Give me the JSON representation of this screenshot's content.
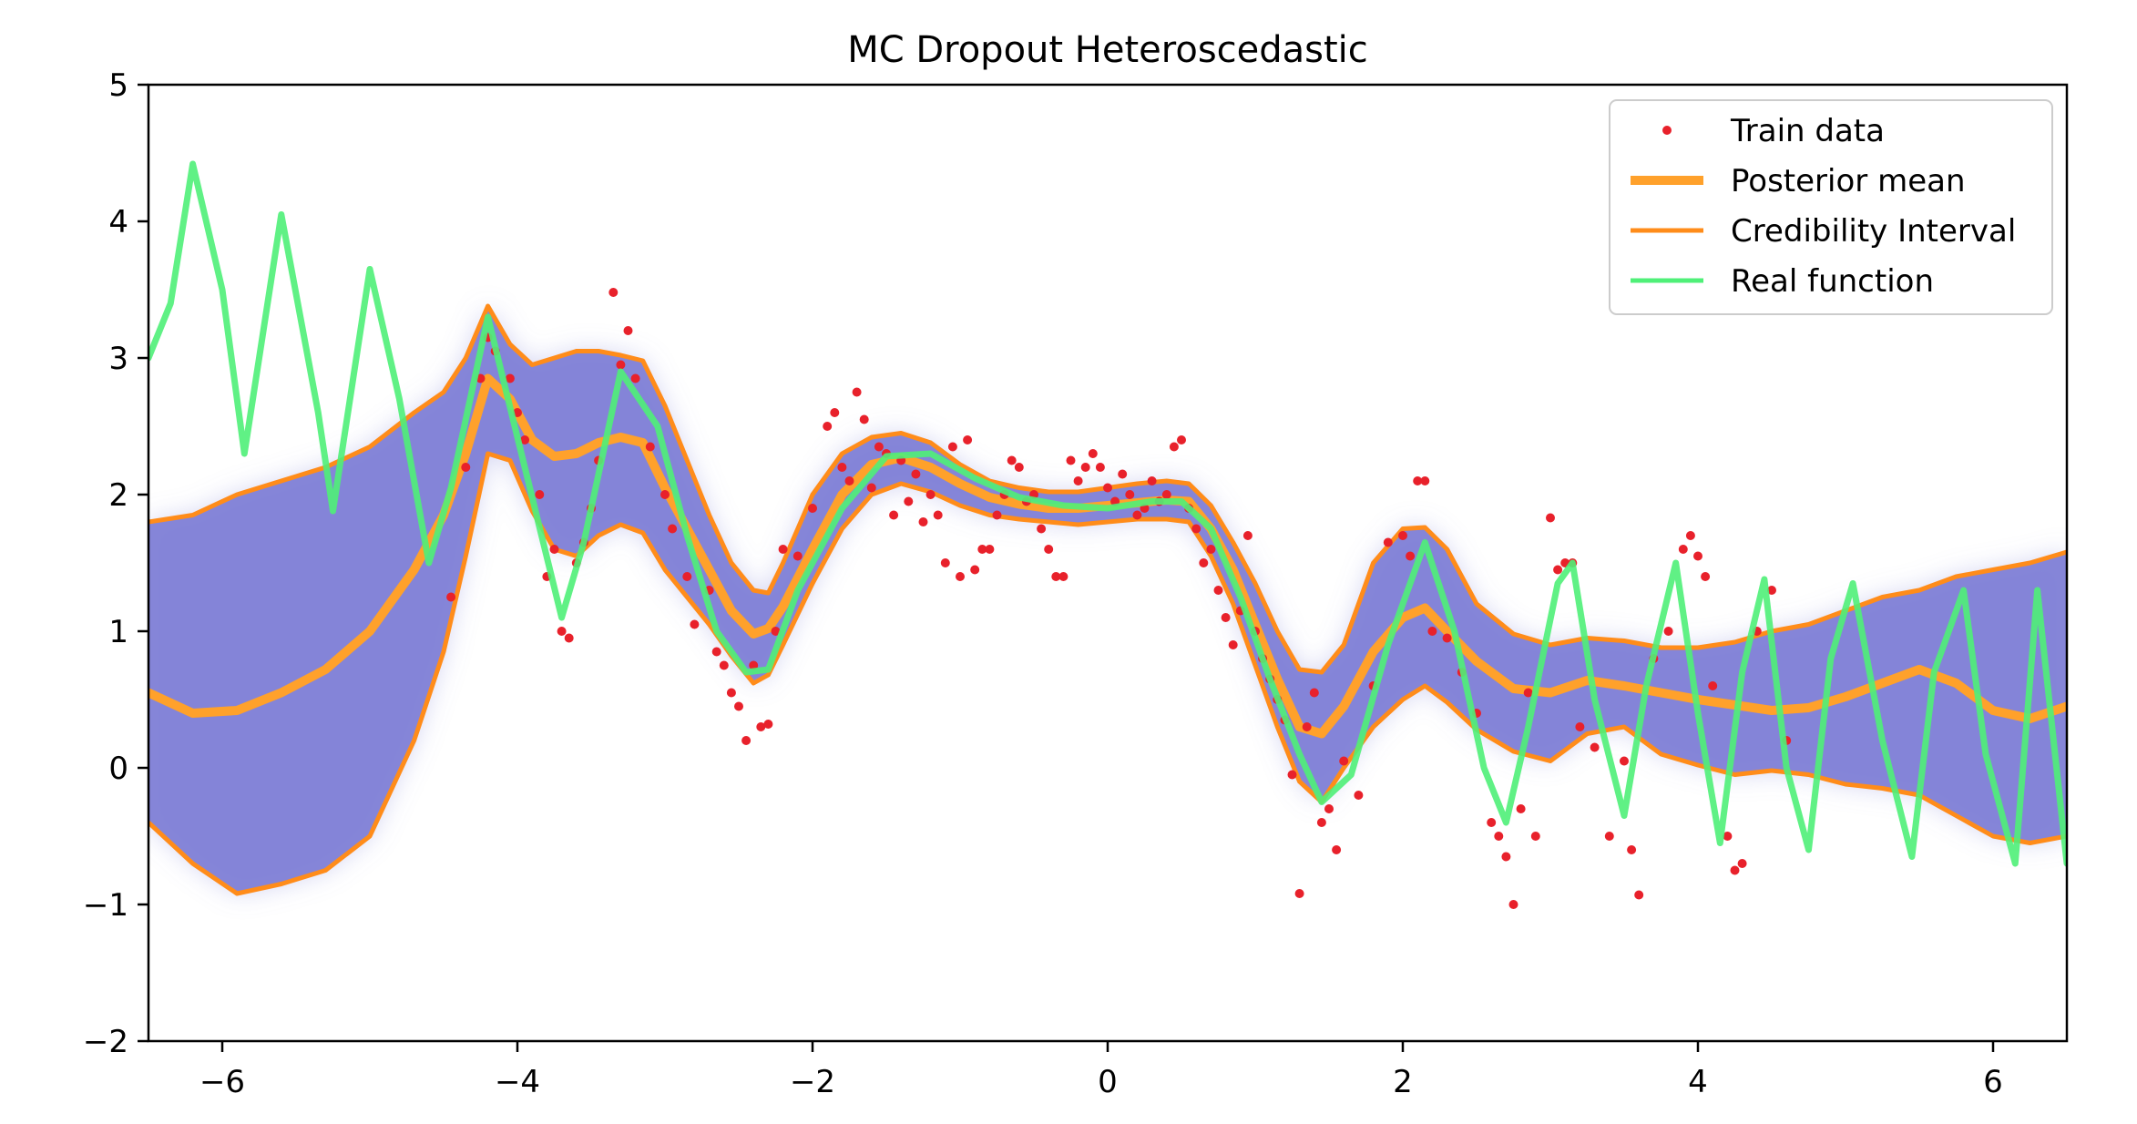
{
  "chart_data": {
    "type": "line",
    "title": "MC Dropout Heteroscedastic",
    "xlabel": "",
    "ylabel": "",
    "xlim": [
      -6.5,
      6.5
    ],
    "ylim": [
      -2,
      5
    ],
    "x_ticks": [
      -6,
      -4,
      -2,
      0,
      2,
      4,
      6
    ],
    "x_tick_labels": [
      "−6",
      "−4",
      "−2",
      "0",
      "2",
      "4",
      "6"
    ],
    "y_ticks": [
      -2,
      -1,
      0,
      1,
      2,
      3,
      4,
      5
    ],
    "y_tick_labels": [
      "−2",
      "−1",
      "0",
      "1",
      "2",
      "3",
      "4",
      "5"
    ],
    "grid": false,
    "legend_position": "top-right",
    "legend": [
      {
        "label": "Train data",
        "kind": "marker",
        "color": "#e8212b"
      },
      {
        "label": "Posterior mean",
        "kind": "line-thick",
        "color": "#ffa12b"
      },
      {
        "label": "Credibility Interval",
        "kind": "line",
        "color": "#ff8c1a"
      },
      {
        "label": "Real function",
        "kind": "line",
        "color": "#4ff078"
      }
    ],
    "colors": {
      "train": "#e8212b",
      "mean": "#ffa12b",
      "interval": "#ff8c1a",
      "real": "#4ff078",
      "band": "#7f80d6"
    },
    "series": [
      {
        "name": "Posterior mean",
        "x": [
          -6.5,
          -6.2,
          -5.9,
          -5.6,
          -5.3,
          -5.0,
          -4.7,
          -4.5,
          -4.35,
          -4.2,
          -4.05,
          -3.9,
          -3.75,
          -3.6,
          -3.45,
          -3.3,
          -3.15,
          -3.0,
          -2.85,
          -2.7,
          -2.55,
          -2.4,
          -2.3,
          -2.2,
          -2.0,
          -1.8,
          -1.6,
          -1.4,
          -1.2,
          -1.0,
          -0.8,
          -0.6,
          -0.4,
          -0.2,
          0.0,
          0.2,
          0.4,
          0.55,
          0.7,
          0.85,
          1.0,
          1.15,
          1.3,
          1.45,
          1.6,
          1.8,
          2.0,
          2.15,
          2.3,
          2.5,
          2.75,
          3.0,
          3.25,
          3.5,
          3.75,
          4.0,
          4.25,
          4.5,
          4.75,
          5.0,
          5.25,
          5.5,
          5.75,
          6.0,
          6.25,
          6.5
        ],
        "y": [
          0.55,
          0.4,
          0.42,
          0.55,
          0.72,
          1.0,
          1.45,
          1.85,
          2.3,
          2.85,
          2.7,
          2.4,
          2.28,
          2.3,
          2.38,
          2.42,
          2.38,
          2.05,
          1.75,
          1.45,
          1.15,
          0.98,
          1.02,
          1.18,
          1.6,
          2.0,
          2.22,
          2.27,
          2.2,
          2.08,
          1.98,
          1.93,
          1.9,
          1.9,
          1.92,
          1.94,
          1.96,
          1.95,
          1.75,
          1.45,
          1.05,
          0.65,
          0.3,
          0.25,
          0.45,
          0.85,
          1.1,
          1.17,
          1.0,
          0.78,
          0.58,
          0.55,
          0.64,
          0.6,
          0.55,
          0.5,
          0.46,
          0.42,
          0.44,
          0.52,
          0.62,
          0.72,
          0.62,
          0.42,
          0.36,
          0.45
        ]
      },
      {
        "name": "Credibility Interval",
        "x": [
          -6.5,
          -6.2,
          -5.9,
          -5.6,
          -5.3,
          -5.0,
          -4.7,
          -4.5,
          -4.35,
          -4.2,
          -4.05,
          -3.9,
          -3.75,
          -3.6,
          -3.45,
          -3.3,
          -3.15,
          -3.0,
          -2.85,
          -2.7,
          -2.55,
          -2.4,
          -2.3,
          -2.2,
          -2.0,
          -1.8,
          -1.6,
          -1.4,
          -1.2,
          -1.0,
          -0.8,
          -0.6,
          -0.4,
          -0.2,
          0.0,
          0.2,
          0.4,
          0.55,
          0.7,
          0.85,
          1.0,
          1.15,
          1.3,
          1.45,
          1.6,
          1.8,
          2.0,
          2.15,
          2.3,
          2.5,
          2.75,
          3.0,
          3.25,
          3.5,
          3.75,
          4.0,
          4.25,
          4.5,
          4.75,
          5.0,
          5.25,
          5.5,
          5.75,
          6.0,
          6.25,
          6.5
        ],
        "y": [
          1.8,
          1.85,
          2.0,
          2.1,
          2.2,
          2.35,
          2.6,
          2.75,
          3.0,
          3.38,
          3.1,
          2.95,
          3.0,
          3.05,
          3.05,
          3.02,
          2.98,
          2.65,
          2.25,
          1.85,
          1.5,
          1.3,
          1.28,
          1.5,
          2.0,
          2.3,
          2.42,
          2.45,
          2.38,
          2.22,
          2.1,
          2.05,
          2.02,
          2.02,
          2.05,
          2.08,
          2.1,
          2.08,
          1.92,
          1.65,
          1.35,
          1.0,
          0.72,
          0.7,
          0.9,
          1.5,
          1.75,
          1.76,
          1.6,
          1.2,
          0.98,
          0.9,
          0.95,
          0.93,
          0.88,
          0.88,
          0.92,
          1.0,
          1.05,
          1.15,
          1.25,
          1.3,
          1.4,
          1.45,
          1.5,
          1.58
        ]
      },
      {
        "name": "Credibility Interval",
        "x": [
          -6.5,
          -6.2,
          -5.9,
          -5.6,
          -5.3,
          -5.0,
          -4.7,
          -4.5,
          -4.35,
          -4.2,
          -4.05,
          -3.9,
          -3.75,
          -3.6,
          -3.45,
          -3.3,
          -3.15,
          -3.0,
          -2.85,
          -2.7,
          -2.55,
          -2.4,
          -2.3,
          -2.2,
          -2.0,
          -1.8,
          -1.6,
          -1.4,
          -1.2,
          -1.0,
          -0.8,
          -0.6,
          -0.4,
          -0.2,
          0.0,
          0.2,
          0.4,
          0.55,
          0.7,
          0.85,
          1.0,
          1.15,
          1.3,
          1.45,
          1.6,
          1.8,
          2.0,
          2.15,
          2.3,
          2.5,
          2.75,
          3.0,
          3.25,
          3.5,
          3.75,
          4.0,
          4.25,
          4.5,
          4.75,
          5.0,
          5.25,
          5.5,
          5.75,
          6.0,
          6.25,
          6.5
        ],
        "y": [
          -0.4,
          -0.7,
          -0.92,
          -0.85,
          -0.75,
          -0.5,
          0.2,
          0.85,
          1.55,
          2.3,
          2.25,
          1.88,
          1.6,
          1.55,
          1.7,
          1.78,
          1.72,
          1.45,
          1.25,
          1.05,
          0.82,
          0.62,
          0.68,
          0.9,
          1.35,
          1.75,
          2.0,
          2.08,
          2.02,
          1.92,
          1.85,
          1.82,
          1.8,
          1.78,
          1.8,
          1.82,
          1.82,
          1.8,
          1.55,
          1.2,
          0.75,
          0.3,
          -0.1,
          -0.25,
          0.0,
          0.3,
          0.5,
          0.6,
          0.48,
          0.28,
          0.12,
          0.05,
          0.25,
          0.3,
          0.1,
          0.02,
          -0.05,
          -0.02,
          -0.05,
          -0.12,
          -0.15,
          -0.2,
          -0.35,
          -0.5,
          -0.55,
          -0.5
        ]
      },
      {
        "name": "Real function",
        "x": [
          -6.5,
          -6.35,
          -6.2,
          -6.0,
          -5.85,
          -5.6,
          -5.35,
          -5.25,
          -5.0,
          -4.8,
          -4.6,
          -4.45,
          -4.2,
          -3.95,
          -3.7,
          -3.55,
          -3.3,
          -3.05,
          -2.85,
          -2.65,
          -2.45,
          -2.3,
          -2.1,
          -1.8,
          -1.5,
          -1.2,
          -0.9,
          -0.6,
          -0.3,
          0.0,
          0.3,
          0.5,
          0.7,
          0.9,
          1.1,
          1.3,
          1.45,
          1.65,
          1.9,
          2.15,
          2.35,
          2.55,
          2.7,
          2.85,
          3.05,
          3.15,
          3.3,
          3.5,
          3.65,
          3.85,
          4.0,
          4.15,
          4.3,
          4.45,
          4.6,
          4.75,
          4.9,
          5.05,
          5.25,
          5.45,
          5.6,
          5.8,
          5.95,
          6.15,
          6.3,
          6.5
        ],
        "y": [
          3.0,
          3.4,
          4.42,
          3.5,
          2.3,
          4.05,
          2.6,
          1.88,
          3.65,
          2.7,
          1.5,
          2.05,
          3.3,
          2.2,
          1.1,
          1.65,
          2.9,
          2.5,
          1.7,
          1.0,
          0.7,
          0.72,
          1.3,
          1.9,
          2.28,
          2.3,
          2.12,
          1.98,
          1.92,
          1.9,
          1.95,
          1.95,
          1.75,
          1.25,
          0.65,
          0.1,
          -0.25,
          -0.05,
          0.9,
          1.65,
          1.0,
          0.0,
          -0.4,
          0.3,
          1.35,
          1.5,
          0.5,
          -0.35,
          0.6,
          1.5,
          0.4,
          -0.55,
          0.7,
          1.38,
          0.0,
          -0.6,
          0.8,
          1.35,
          0.2,
          -0.65,
          0.7,
          1.3,
          0.1,
          -0.7,
          1.3,
          -0.7
        ]
      }
    ],
    "train_data": {
      "x": [
        -4.45,
        -4.35,
        -4.25,
        -4.2,
        -4.15,
        -4.05,
        -4.0,
        -3.95,
        -3.85,
        -3.8,
        -3.75,
        -3.7,
        -3.65,
        -3.6,
        -3.55,
        -3.5,
        -3.45,
        -3.35,
        -3.3,
        -3.25,
        -3.2,
        -3.1,
        -3.0,
        -2.95,
        -2.85,
        -2.8,
        -2.7,
        -2.65,
        -2.6,
        -2.55,
        -2.5,
        -2.45,
        -2.4,
        -2.35,
        -2.3,
        -2.25,
        -2.2,
        -2.1,
        -2.0,
        -1.9,
        -1.85,
        -1.8,
        -1.75,
        -1.7,
        -1.65,
        -1.6,
        -1.55,
        -1.5,
        -1.45,
        -1.4,
        -1.35,
        -1.3,
        -1.25,
        -1.2,
        -1.15,
        -1.1,
        -1.05,
        -1.0,
        -0.95,
        -0.9,
        -0.85,
        -0.8,
        -0.75,
        -0.7,
        -0.65,
        -0.6,
        -0.55,
        -0.5,
        -0.45,
        -0.4,
        -0.35,
        -0.3,
        -0.25,
        -0.2,
        -0.15,
        -0.1,
        -0.05,
        0.0,
        0.05,
        0.1,
        0.15,
        0.2,
        0.25,
        0.3,
        0.35,
        0.4,
        0.45,
        0.5,
        0.55,
        0.6,
        0.65,
        0.7,
        0.75,
        0.8,
        0.85,
        0.9,
        0.95,
        1.0,
        1.05,
        1.1,
        1.15,
        1.2,
        1.25,
        1.3,
        1.35,
        1.4,
        1.45,
        1.5,
        1.55,
        1.6,
        1.7,
        1.8,
        1.9,
        2.0,
        2.05,
        2.1,
        2.15,
        2.2,
        2.3,
        2.4,
        2.5,
        2.6,
        2.65,
        2.7,
        2.75,
        2.8,
        2.85,
        2.9,
        3.0,
        3.05,
        3.1,
        3.15,
        3.2,
        3.3,
        3.4,
        3.5,
        3.55,
        3.6,
        3.7,
        3.8,
        3.9,
        3.95,
        4.0,
        4.05,
        4.1,
        4.2,
        4.25,
        4.3,
        4.4,
        4.5,
        4.6
      ],
      "y": [
        1.25,
        2.2,
        2.85,
        3.15,
        3.05,
        2.85,
        2.6,
        2.4,
        2.0,
        1.4,
        1.6,
        1.0,
        0.95,
        1.5,
        1.65,
        1.9,
        2.25,
        3.48,
        2.95,
        3.2,
        2.85,
        2.35,
        2.0,
        1.75,
        1.4,
        1.05,
        1.3,
        0.85,
        0.75,
        0.55,
        0.45,
        0.2,
        0.75,
        0.3,
        0.32,
        1.0,
        1.6,
        1.55,
        1.9,
        2.5,
        2.6,
        2.2,
        2.1,
        2.75,
        2.55,
        2.05,
        2.35,
        2.3,
        1.85,
        2.25,
        1.95,
        2.15,
        1.8,
        2.0,
        1.85,
        1.5,
        2.35,
        1.4,
        2.4,
        1.45,
        1.6,
        1.6,
        1.85,
        2.0,
        2.25,
        2.2,
        1.95,
        2.0,
        1.75,
        1.6,
        1.4,
        1.4,
        2.25,
        2.1,
        2.2,
        2.3,
        2.2,
        2.05,
        1.95,
        2.15,
        2.0,
        1.85,
        1.9,
        2.1,
        1.95,
        2.0,
        2.35,
        2.4,
        1.9,
        1.75,
        1.5,
        1.6,
        1.3,
        1.1,
        0.9,
        1.15,
        1.7,
        1.0,
        0.8,
        0.65,
        0.5,
        0.35,
        -0.05,
        -0.92,
        0.3,
        0.55,
        -0.4,
        -0.3,
        -0.6,
        0.05,
        -0.2,
        0.6,
        1.65,
        1.7,
        1.55,
        2.1,
        2.1,
        1.0,
        0.95,
        0.7,
        0.4,
        -0.4,
        -0.5,
        -0.65,
        -1.0,
        -0.3,
        0.55,
        -0.5,
        1.83,
        1.45,
        1.5,
        1.5,
        0.3,
        0.15,
        -0.5,
        0.05,
        -0.6,
        -0.93,
        0.8,
        1.0,
        1.6,
        1.7,
        1.55,
        1.4,
        0.6,
        -0.5,
        -0.75,
        -0.7,
        1.0,
        1.3,
        0.2
      ]
    }
  }
}
